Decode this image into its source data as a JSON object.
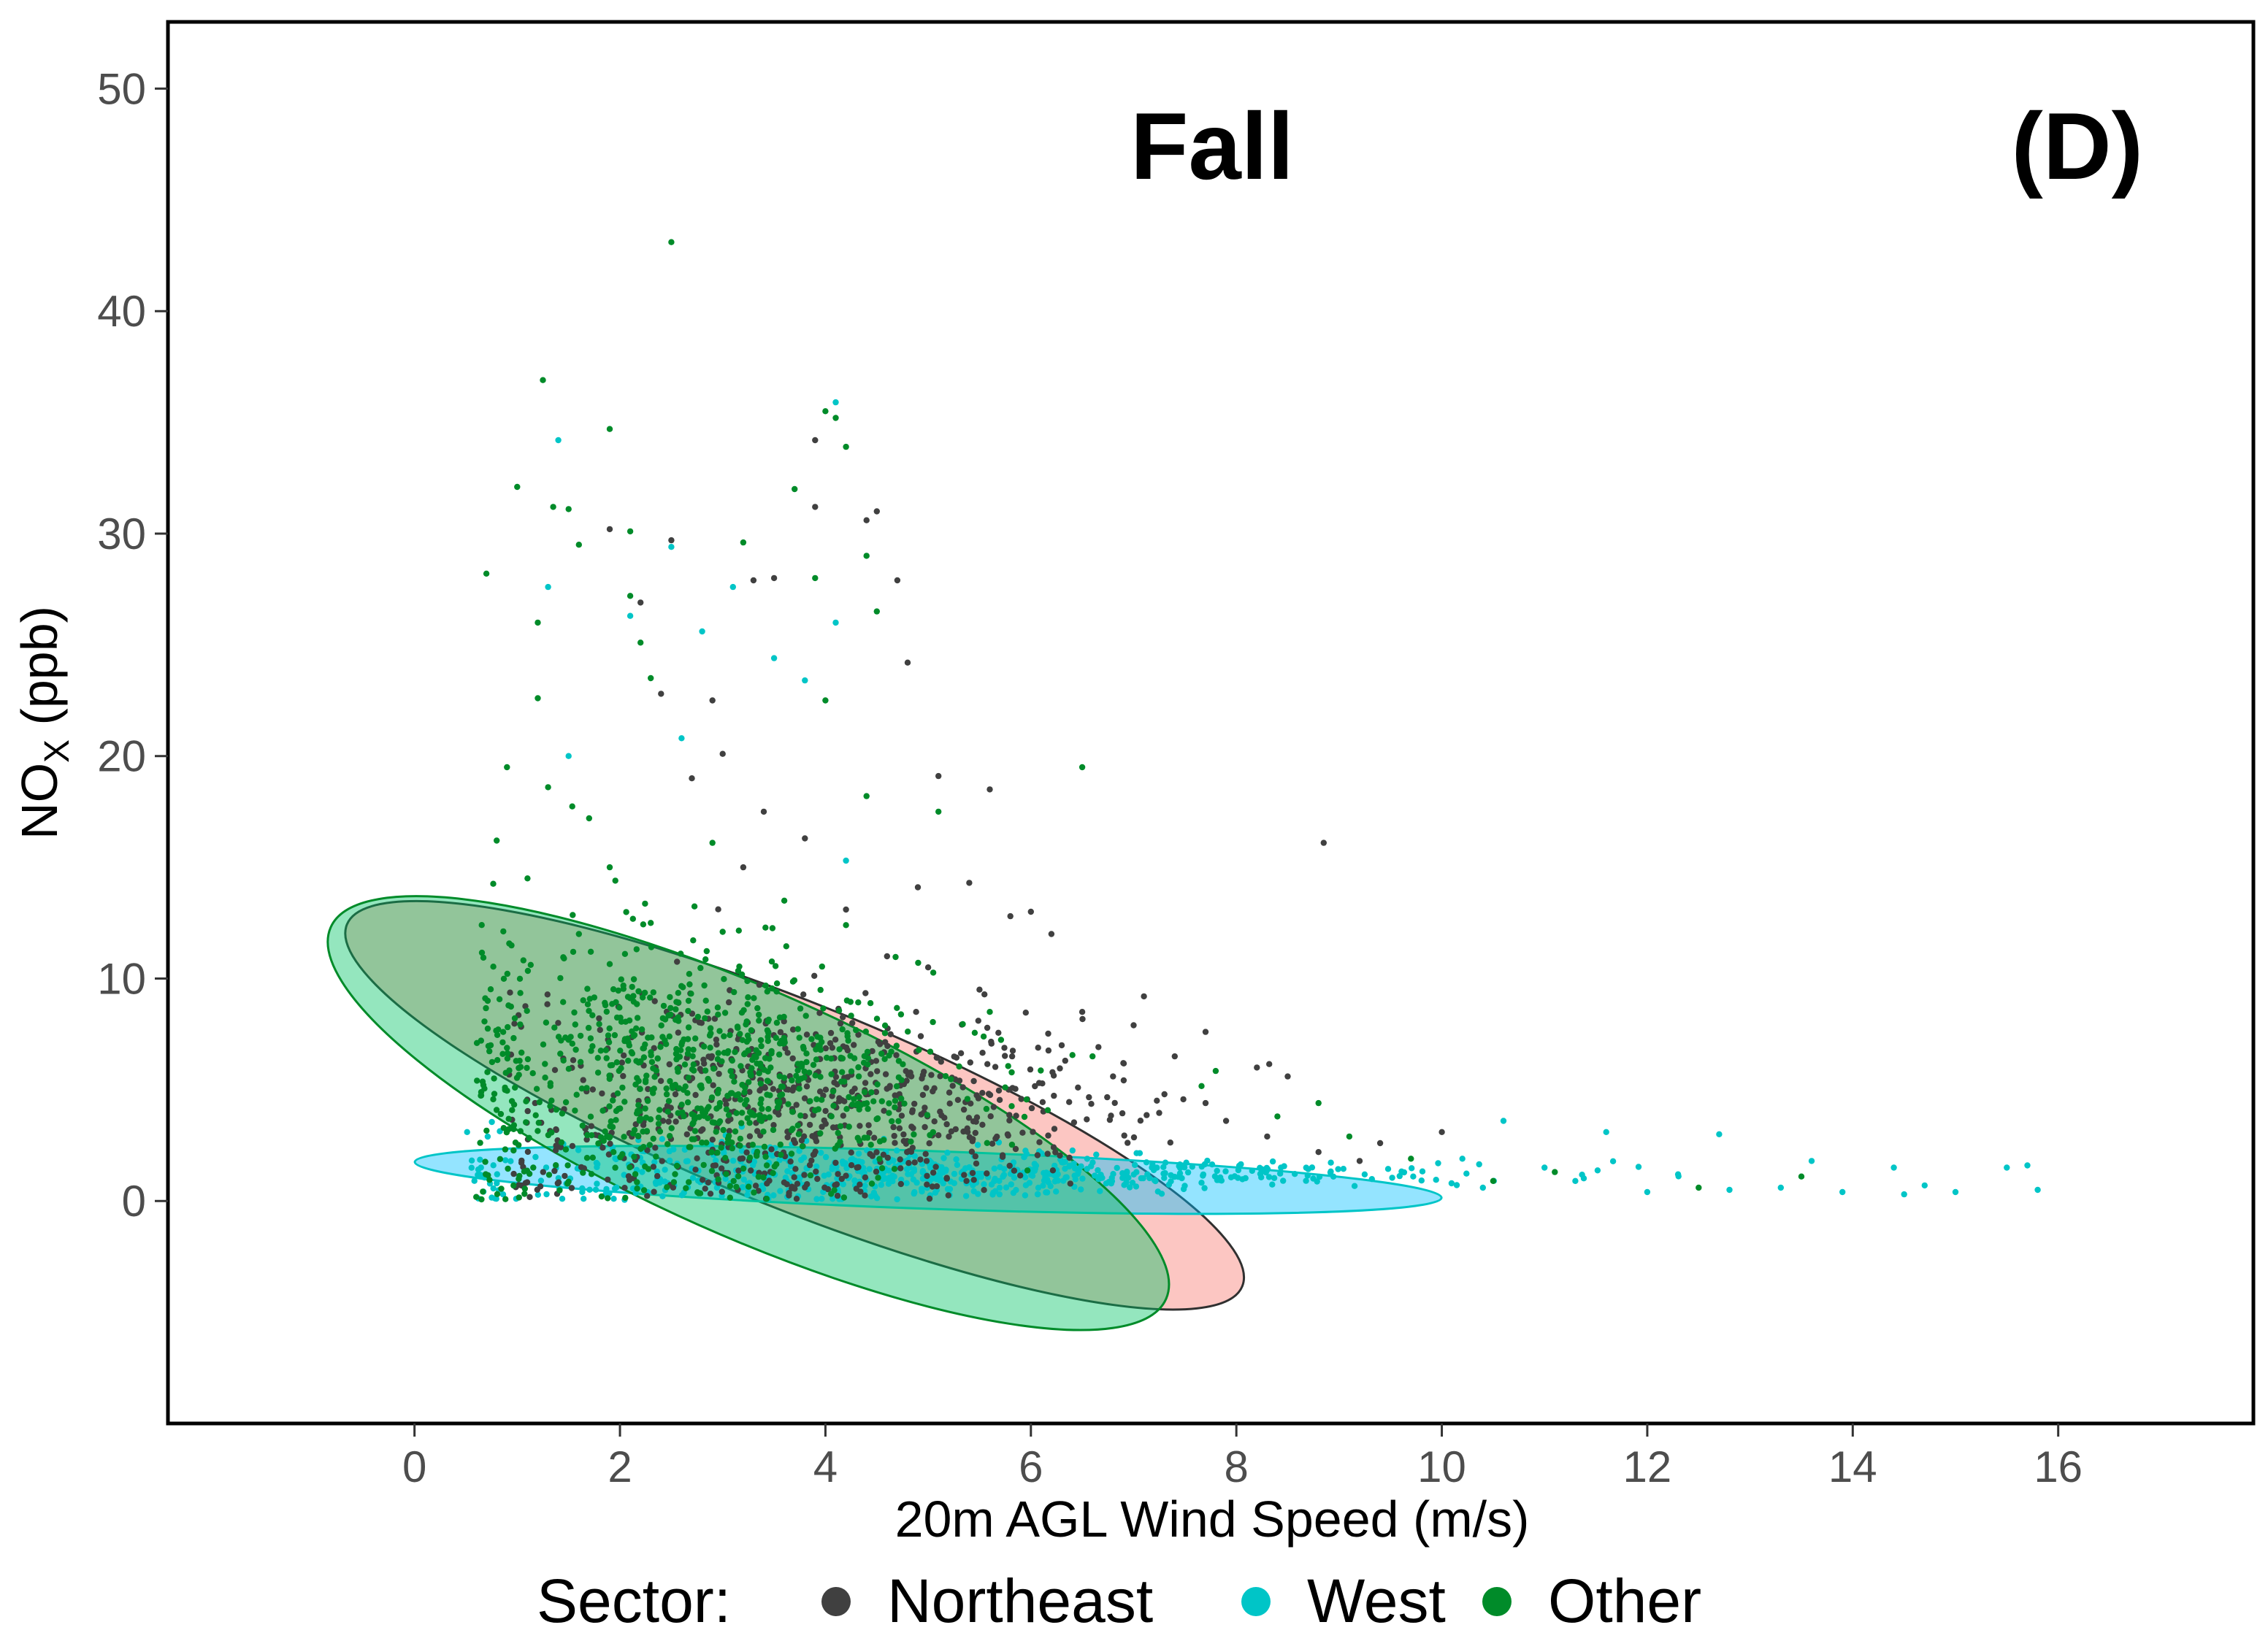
{
  "chart_data": {
    "type": "scatter",
    "title": "Fall",
    "panel_label": "(D)",
    "xlabel": "20m AGL Wind Speed (m/s)",
    "ylabel": {
      "base": "NO",
      "subscript": "X",
      "rest": " (ppb)"
    },
    "xlim": [
      -2.4,
      17.9
    ],
    "ylim": [
      -10,
      53
    ],
    "x_ticks": [
      0,
      2,
      4,
      6,
      8,
      10,
      12,
      14,
      16
    ],
    "y_ticks": [
      0,
      10,
      20,
      30,
      40,
      50
    ],
    "grid": false,
    "legend": {
      "title": "Sector:",
      "position": "bottom",
      "entries": [
        "Northeast",
        "West",
        "Other"
      ]
    },
    "series": [
      {
        "name": "Northeast",
        "color": "#404040",
        "ellipse_fill": "#f8766d",
        "ellipse": {
          "cx": 3.7,
          "cy": 4.3,
          "rx": 4.7,
          "ry": 4.6,
          "angle_deg": -22
        },
        "points": [
          [
            8.85,
            16.1
          ],
          [
            7.1,
            9.2
          ],
          [
            6.5,
            8.5
          ],
          [
            5.6,
            18.5
          ],
          [
            5.1,
            19.1
          ],
          [
            4.8,
            24.2
          ],
          [
            4.7,
            27.9
          ],
          [
            4.5,
            31.0
          ],
          [
            4.4,
            30.6
          ],
          [
            3.9,
            34.2
          ],
          [
            3.9,
            31.2
          ],
          [
            3.5,
            28.0
          ],
          [
            3.3,
            27.9
          ],
          [
            2.9,
            22.5
          ],
          [
            2.5,
            29.7
          ],
          [
            2.4,
            22.8
          ],
          [
            1.9,
            30.2
          ],
          [
            2.2,
            26.9
          ],
          [
            6.2,
            12.0
          ],
          [
            5.8,
            12.8
          ],
          [
            7.7,
            7.6
          ],
          [
            8.2,
            6.0
          ],
          [
            7.0,
            7.9
          ],
          [
            6.0,
            13.0
          ],
          [
            5.4,
            14.3
          ],
          [
            4.9,
            14.1
          ],
          [
            8.5,
            5.6
          ],
          [
            7.4,
            6.5
          ],
          [
            10.0,
            3.1
          ],
          [
            9.4,
            2.6
          ],
          [
            7.7,
            4.4
          ],
          [
            6.9,
            6.2
          ],
          [
            3.0,
            20.1
          ],
          [
            3.4,
            17.5
          ],
          [
            3.8,
            16.3
          ],
          [
            2.7,
            19.0
          ],
          [
            3.2,
            15.0
          ],
          [
            4.2,
            13.1
          ],
          [
            4.6,
            11.0
          ],
          [
            5.0,
            10.5
          ],
          [
            5.5,
            9.5
          ],
          [
            6.3,
            7.0
          ],
          [
            6.8,
            5.6
          ],
          [
            7.3,
            4.8
          ],
          [
            7.9,
            3.6
          ],
          [
            8.3,
            2.9
          ],
          [
            8.8,
            2.2
          ],
          [
            9.2,
            1.8
          ]
        ],
        "cloud": {
          "n": 700,
          "x_mean": 3.8,
          "x_sd": 1.5,
          "y_mean": 4.2,
          "y_sd": 3.8,
          "x_min": 0.9,
          "x_max": 9.2
        }
      },
      {
        "name": "West",
        "color": "#00c5c7",
        "ellipse_fill": "#00bfff",
        "ellipse": {
          "cx": 5.0,
          "cy": 0.95,
          "rx": 5.0,
          "ry": 1.3,
          "angle_deg": -2
        },
        "points": [
          [
            15.8,
            0.5
          ],
          [
            15.7,
            1.6
          ],
          [
            15.5,
            1.5
          ],
          [
            15.0,
            0.4
          ],
          [
            14.7,
            0.7
          ],
          [
            14.5,
            0.3
          ],
          [
            14.4,
            1.5
          ],
          [
            13.9,
            0.4
          ],
          [
            13.6,
            1.8
          ],
          [
            13.3,
            0.6
          ],
          [
            12.8,
            0.5
          ],
          [
            12.7,
            3.0
          ],
          [
            12.3,
            1.2
          ],
          [
            12.0,
            0.4
          ],
          [
            11.6,
            3.1
          ],
          [
            11.3,
            0.9
          ],
          [
            11.0,
            1.5
          ],
          [
            10.6,
            3.6
          ],
          [
            10.4,
            0.6
          ],
          [
            10.2,
            1.9
          ],
          [
            4.1,
            35.9
          ],
          [
            1.4,
            34.2
          ],
          [
            3.5,
            24.4
          ],
          [
            4.1,
            26.0
          ],
          [
            1.3,
            27.6
          ],
          [
            2.6,
            20.8
          ],
          [
            3.8,
            23.4
          ],
          [
            4.2,
            15.3
          ],
          [
            1.5,
            20.0
          ],
          [
            2.5,
            29.4
          ],
          [
            3.1,
            27.6
          ],
          [
            2.8,
            25.6
          ],
          [
            2.1,
            26.3
          ]
        ],
        "cloud": {
          "n": 620,
          "x_mean": 5.0,
          "x_sd": 2.3,
          "y_mean": 1.2,
          "y_sd": 1.0,
          "x_min": 0.5,
          "x_max": 12.8
        }
      },
      {
        "name": "Other",
        "color": "#008b29",
        "ellipse_fill": "#00c465",
        "ellipse": {
          "cx": 3.25,
          "cy": 3.95,
          "rx": 4.45,
          "ry": 5.5,
          "angle_deg": -24
        },
        "points": [
          [
            2.5,
            43.1
          ],
          [
            1.25,
            36.9
          ],
          [
            1.9,
            34.7
          ],
          [
            4.0,
            35.5
          ],
          [
            4.1,
            35.2
          ],
          [
            4.2,
            33.9
          ],
          [
            0.7,
            28.2
          ],
          [
            1.0,
            32.1
          ],
          [
            1.5,
            31.1
          ],
          [
            1.35,
            31.2
          ],
          [
            1.6,
            29.5
          ],
          [
            2.1,
            30.1
          ],
          [
            3.2,
            29.6
          ],
          [
            4.4,
            29.0
          ],
          [
            3.7,
            32.0
          ],
          [
            3.9,
            28.0
          ],
          [
            2.1,
            27.2
          ],
          [
            1.2,
            26.0
          ],
          [
            2.2,
            25.1
          ],
          [
            4.5,
            26.5
          ],
          [
            6.5,
            19.5
          ],
          [
            0.9,
            19.5
          ],
          [
            4.0,
            22.5
          ],
          [
            0.8,
            16.2
          ],
          [
            2.3,
            23.5
          ],
          [
            4.4,
            18.2
          ],
          [
            5.1,
            17.5
          ],
          [
            9.1,
            2.9
          ],
          [
            9.7,
            1.9
          ],
          [
            10.5,
            0.9
          ],
          [
            11.1,
            1.3
          ],
          [
            12.5,
            0.6
          ],
          [
            13.5,
            1.1
          ],
          [
            1.2,
            22.6
          ],
          [
            1.3,
            18.6
          ],
          [
            1.7,
            17.2
          ],
          [
            1.1,
            14.5
          ],
          [
            1.9,
            15.0
          ],
          [
            2.9,
            16.1
          ],
          [
            3.6,
            13.5
          ],
          [
            2.3,
            12.5
          ],
          [
            1.6,
            12.0
          ],
          [
            3.0,
            12.1
          ],
          [
            4.2,
            12.4
          ],
          [
            5.6,
            8.5
          ],
          [
            6.6,
            6.5
          ],
          [
            8.4,
            3.8
          ],
          [
            8.8,
            4.4
          ]
        ],
        "cloud": {
          "n": 850,
          "x_mean": 2.7,
          "x_sd": 1.3,
          "y_mean": 5.3,
          "y_sd": 3.5,
          "x_min": 0.6,
          "x_max": 8.0
        }
      }
    ]
  }
}
